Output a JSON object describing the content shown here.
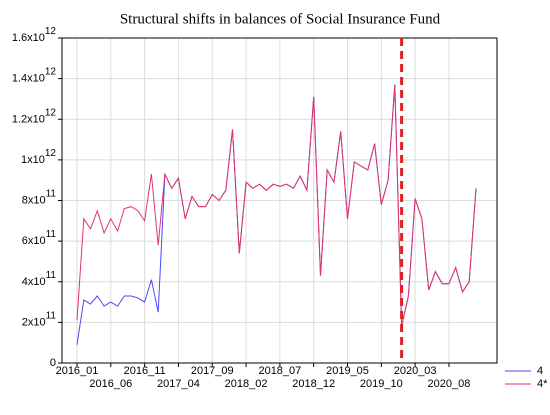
{
  "chart_data": {
    "type": "line",
    "title": "Structural shifts in balances of Social Insurance Fund",
    "categories": [
      "2016_01",
      null,
      null,
      null,
      null,
      "2016_06",
      null,
      null,
      null,
      null,
      "2016_11",
      null,
      null,
      null,
      null,
      "2017_04",
      null,
      null,
      null,
      null,
      "2017_09",
      null,
      null,
      null,
      null,
      "2018_02",
      null,
      null,
      null,
      null,
      "2018_07",
      null,
      null,
      null,
      null,
      "2018_12",
      null,
      null,
      null,
      null,
      "2019_05",
      null,
      null,
      null,
      null,
      "2019_10",
      null,
      null,
      null,
      null,
      "2020_03",
      null,
      null,
      null,
      null,
      "2020_08",
      null,
      null,
      null,
      null
    ],
    "series": [
      {
        "name": "4",
        "color": "#4a4aff",
        "values": [
          90000000000.0,
          310000000000.0,
          290000000000.0,
          330000000000.0,
          280000000000.0,
          300000000000.0,
          280000000000.0,
          330000000000.0,
          330000000000.0,
          320000000000.0,
          300000000000.0,
          410000000000.0,
          250000000000.0,
          930000000000.0,
          860000000000.0,
          910000000000.0,
          710000000000.0,
          820000000000.0,
          770000000000.0,
          770000000000.0,
          830000000000.0,
          800000000000.0,
          850000000000.0,
          1150000000000.0,
          540000000000.0,
          890000000000.0,
          860000000000.0,
          880000000000.0,
          850000000000.0,
          880000000000.0,
          870000000000.0,
          880000000000.0,
          860000000000.0,
          920000000000.0,
          850000000000.0,
          1310000000000.0,
          430000000000.0,
          950000000000.0,
          890000000000.0,
          1140000000000.0,
          710000000000.0,
          990000000000.0,
          970000000000.0,
          950000000000.0,
          1080000000000.0,
          780000000000.0,
          900000000000.0,
          1370000000000.0,
          180000000000.0,
          330000000000.0,
          810000000000.0,
          710000000000.0,
          360000000000.0,
          450000000000.0,
          390000000000.0,
          390000000000.0,
          470000000000.0,
          350000000000.0,
          400000000000.0,
          860000000000.0
        ]
      },
      {
        "name": "4*",
        "color": "#e3336b",
        "values": [
          210000000000.0,
          710000000000.0,
          660000000000.0,
          750000000000.0,
          640000000000.0,
          710000000000.0,
          650000000000.0,
          760000000000.0,
          770000000000.0,
          750000000000.0,
          700000000000.0,
          930000000000.0,
          580000000000.0,
          930000000000.0,
          860000000000.0,
          910000000000.0,
          710000000000.0,
          820000000000.0,
          770000000000.0,
          770000000000.0,
          830000000000.0,
          800000000000.0,
          850000000000.0,
          1150000000000.0,
          540000000000.0,
          890000000000.0,
          860000000000.0,
          880000000000.0,
          850000000000.0,
          880000000000.0,
          870000000000.0,
          880000000000.0,
          860000000000.0,
          920000000000.0,
          850000000000.0,
          1310000000000.0,
          430000000000.0,
          950000000000.0,
          890000000000.0,
          1140000000000.0,
          710000000000.0,
          990000000000.0,
          970000000000.0,
          950000000000.0,
          1080000000000.0,
          780000000000.0,
          900000000000.0,
          1370000000000.0,
          180000000000.0,
          330000000000.0,
          810000000000.0,
          710000000000.0,
          360000000000.0,
          450000000000.0,
          390000000000.0,
          390000000000.0,
          470000000000.0,
          350000000000.0,
          400000000000.0,
          860000000000.0
        ]
      }
    ],
    "ylim": [
      0,
      1600000000000.0
    ],
    "yticks": [
      0,
      {
        "value": 200000000000.0,
        "label": "2x10",
        "exponent": "11"
      },
      {
        "value": 400000000000.0,
        "label": "4x10",
        "exponent": "11"
      },
      {
        "value": 600000000000.0,
        "label": "6x10",
        "exponent": "11"
      },
      {
        "value": 800000000000.0,
        "label": "8x10",
        "exponent": "11"
      },
      {
        "value": 1000000000000.0,
        "label": "1x10",
        "exponent": "12"
      },
      {
        "value": 1200000000000.0,
        "label": "1.2x10",
        "exponent": "12"
      },
      {
        "value": 1400000000000.0,
        "label": "1.4x10",
        "exponent": "12"
      },
      {
        "value": 1600000000000.0,
        "label": "1.6x10",
        "exponent": "12"
      }
    ],
    "grid": true,
    "vline": {
      "index": 48,
      "color": "#e02020"
    },
    "legend": "bottom-right"
  }
}
